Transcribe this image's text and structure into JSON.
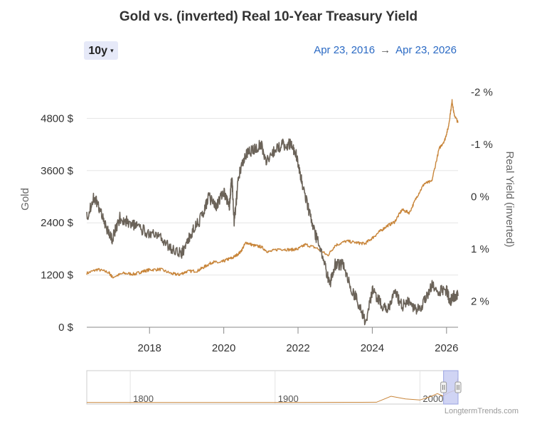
{
  "title": "Gold vs. (inverted) Real 10-Year Treasury Yield",
  "range_selector": {
    "label": "10y",
    "caret": "▾"
  },
  "date_range": {
    "from": "Apr 23, 2016",
    "arrow": "→",
    "to": "Apr 23, 2026"
  },
  "credit": "LongtermTrends.com",
  "colors": {
    "gold": "#c8853a",
    "yield": "#6b6359",
    "grid": "#e5e5e5",
    "navigator_mask": "#c8cdf2"
  },
  "chart_data": {
    "type": "line",
    "title": "Gold vs. (inverted) Real 10-Year Treasury Yield",
    "xlim": [
      2016.31,
      2026.31
    ],
    "x_ticks": [
      2018,
      2020,
      2022,
      2024,
      2026
    ],
    "x_tick_labels": [
      "2018",
      "2020",
      "2022",
      "2024",
      "2026"
    ],
    "y_left": {
      "label": "Gold",
      "lim": [
        0,
        6000
      ],
      "ticks": [
        0,
        1200,
        2400,
        3600,
        4800
      ],
      "tick_labels": [
        "0 $",
        "1200 $",
        "2400 $",
        "3600 $",
        "4800 $"
      ]
    },
    "y_right": {
      "label": "Real Yield (inverted)",
      "inverted": true,
      "lim": [
        2.5,
        -2.5
      ],
      "ticks": [
        2,
        1,
        0,
        -1,
        -2
      ],
      "tick_labels": [
        "2 %",
        "1 %",
        "0 %",
        "-1 %",
        "-2 %"
      ]
    },
    "grid": {
      "horizontal": true,
      "vertical": false
    },
    "series": [
      {
        "name": "Gold",
        "axis": "left",
        "x": [
          2016.31,
          2016.6,
          2016.9,
          2017.0,
          2017.3,
          2017.6,
          2017.8,
          2018.0,
          2018.3,
          2018.6,
          2018.8,
          2019.0,
          2019.3,
          2019.5,
          2019.7,
          2019.9,
          2020.1,
          2020.25,
          2020.45,
          2020.6,
          2020.8,
          2021.0,
          2021.2,
          2021.5,
          2021.8,
          2022.0,
          2022.2,
          2022.5,
          2022.8,
          2023.0,
          2023.3,
          2023.6,
          2023.8,
          2024.0,
          2024.2,
          2024.4,
          2024.6,
          2024.8,
          2025.0,
          2025.2,
          2025.4,
          2025.6,
          2025.8,
          2025.95,
          2026.05,
          2026.15,
          2026.2,
          2026.31
        ],
        "y": [
          1240,
          1330,
          1260,
          1150,
          1240,
          1220,
          1280,
          1320,
          1330,
          1230,
          1210,
          1280,
          1300,
          1400,
          1500,
          1480,
          1560,
          1600,
          1730,
          1950,
          1880,
          1850,
          1730,
          1800,
          1780,
          1800,
          1900,
          1820,
          1650,
          1880,
          1980,
          1940,
          1920,
          2050,
          2200,
          2330,
          2420,
          2700,
          2630,
          3000,
          3300,
          3350,
          4100,
          4300,
          4600,
          5200,
          4900,
          4700
        ]
      },
      {
        "name": "Real Yield (inverted)",
        "axis": "right",
        "x": [
          2016.31,
          2016.5,
          2016.7,
          2016.9,
          2017.0,
          2017.2,
          2017.5,
          2017.7,
          2018.0,
          2018.3,
          2018.6,
          2018.85,
          2019.0,
          2019.2,
          2019.4,
          2019.6,
          2019.8,
          2020.0,
          2020.15,
          2020.22,
          2020.28,
          2020.4,
          2020.6,
          2020.8,
          2021.0,
          2021.15,
          2021.4,
          2021.6,
          2021.8,
          2021.95,
          2022.1,
          2022.3,
          2022.5,
          2022.7,
          2022.85,
          2023.0,
          2023.2,
          2023.4,
          2023.6,
          2023.82,
          2024.0,
          2024.2,
          2024.4,
          2024.6,
          2024.8,
          2025.0,
          2025.2,
          2025.4,
          2025.6,
          2025.8,
          2026.0,
          2026.1,
          2026.2,
          2026.31
        ],
        "y": [
          0.4,
          0.0,
          0.3,
          0.7,
          0.8,
          0.4,
          0.5,
          0.6,
          0.7,
          0.8,
          1.0,
          1.1,
          0.9,
          0.6,
          0.4,
          0.0,
          0.2,
          -0.1,
          0.2,
          -0.4,
          0.5,
          -0.4,
          -0.8,
          -0.9,
          -1.0,
          -0.7,
          -0.9,
          -1.0,
          -1.0,
          -0.8,
          -0.3,
          0.3,
          0.8,
          1.2,
          1.7,
          1.3,
          1.3,
          1.7,
          2.0,
          2.4,
          1.8,
          2.0,
          2.2,
          1.8,
          2.1,
          2.0,
          2.2,
          2.0,
          1.7,
          1.8,
          1.8,
          2.0,
          1.9,
          1.9
        ]
      }
    ]
  },
  "navigator": {
    "labels": [
      "1800",
      "1900",
      "2000"
    ],
    "xlim": [
      1770,
      2026.31
    ],
    "selection": [
      2016.31,
      2026.31
    ],
    "series": {
      "x": [
        1770,
        1800,
        1850,
        1900,
        1930,
        1950,
        1970,
        1980,
        1990,
        2000,
        2008,
        2012,
        2016,
        2020,
        2024,
        2026.31
      ],
      "y": [
        30,
        30,
        30,
        30,
        50,
        60,
        80,
        1200,
        700,
        500,
        1200,
        1700,
        1250,
        1900,
        2300,
        4700
      ],
      "ylim": [
        0,
        5200
      ]
    }
  }
}
